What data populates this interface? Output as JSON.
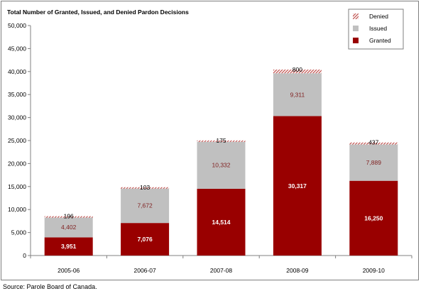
{
  "source_note": "Source:  Parole Board of Canada.",
  "colors": {
    "granted": "#990000",
    "issued": "#c0c0c0",
    "denied_hatch": "#c0504d",
    "granted_label": "#ffffff",
    "issued_label": "#7f1f1f",
    "denied_label": "#000000"
  },
  "chart_data": {
    "type": "bar",
    "stacked": true,
    "title": "Total Number of Granted, Issued, and Denied Pardon Decisions",
    "xlabel": "",
    "ylabel": "",
    "ylim": [
      0,
      50000
    ],
    "yticks": [
      "0",
      "5,000",
      "10,000",
      "15,000",
      "20,000",
      "25,000",
      "30,000",
      "35,000",
      "40,000",
      "45,000",
      "50,000"
    ],
    "categories": [
      "2005-06",
      "2006-07",
      "2007-08",
      "2008-09",
      "2009-10"
    ],
    "legend_position": "top-right",
    "legend_order": [
      "Denied",
      "Issued",
      "Granted"
    ],
    "grid": false,
    "series": [
      {
        "name": "Granted",
        "values": [
          3951,
          7076,
          14514,
          30317,
          16250
        ],
        "labels": [
          "3,951",
          "7,076",
          "14,514",
          "30,317",
          "16,250"
        ]
      },
      {
        "name": "Issued",
        "values": [
          4402,
          7672,
          10332,
          9311,
          7889
        ],
        "labels": [
          "4,402",
          "7,672",
          "10,332",
          "9,311",
          "7,889"
        ]
      },
      {
        "name": "Denied",
        "values": [
          196,
          103,
          175,
          800,
          437
        ],
        "labels": [
          "196",
          "103",
          "175",
          "800",
          "437"
        ]
      }
    ]
  }
}
